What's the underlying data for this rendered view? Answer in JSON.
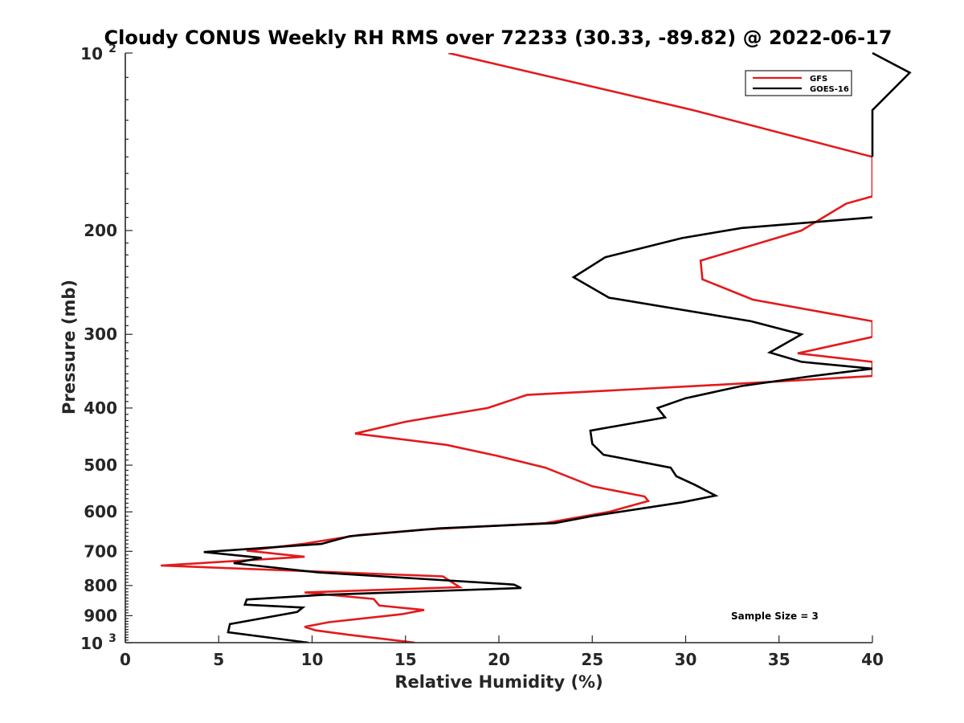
{
  "chart_data": {
    "type": "line",
    "title": "Cloudy CONUS Weekly RH RMS over 72233 (30.33, -89.82) @ 2022-06-17",
    "xlabel": "Relative Humidity (%)",
    "ylabel": "Pressure (mb)",
    "xlim": [
      0,
      40
    ],
    "ylim": [
      100,
      1000
    ],
    "y_scale": "log",
    "y_direction": "reversed",
    "x_ticks": [
      "0",
      "5",
      "10",
      "15",
      "20",
      "25",
      "30",
      "35",
      "40"
    ],
    "y_ticks": [
      {
        "value": 100,
        "base": "10",
        "exp": "2"
      },
      {
        "value": 200,
        "label": "200"
      },
      {
        "value": 300,
        "label": "300"
      },
      {
        "value": 400,
        "label": "400"
      },
      {
        "value": 500,
        "label": "500"
      },
      {
        "value": 600,
        "label": "600"
      },
      {
        "value": 700,
        "label": "700"
      },
      {
        "value": 800,
        "label": "800"
      },
      {
        "value": 900,
        "label": "900"
      },
      {
        "value": 1000,
        "base": "10",
        "exp": "3"
      }
    ],
    "legend": {
      "placement": "top-right",
      "entries": [
        {
          "name": "GFS",
          "color": "#e31a1c"
        },
        {
          "name": "GOES-16",
          "color": "#000000"
        }
      ]
    },
    "annotation": "Sample Size = 3",
    "series": [
      {
        "name": "GFS",
        "color": "#e31a1c",
        "points": [
          [
            17.3,
            100
          ],
          [
            30.4,
            125
          ],
          [
            40.0,
            150
          ],
          [
            40.0,
            175
          ],
          [
            38.6,
            180
          ],
          [
            36.2,
            200
          ],
          [
            30.8,
            225
          ],
          [
            30.9,
            242
          ],
          [
            33.6,
            262
          ],
          [
            40.0,
            285
          ],
          [
            40.0,
            303
          ],
          [
            36.0,
            323
          ],
          [
            40.0,
            334
          ],
          [
            40.0,
            353
          ],
          [
            32.0,
            365
          ],
          [
            21.5,
            380
          ],
          [
            19.4,
            400
          ],
          [
            15.0,
            422
          ],
          [
            12.3,
            442
          ],
          [
            17.2,
            462
          ],
          [
            19.9,
            482
          ],
          [
            22.5,
            505
          ],
          [
            25.0,
            543
          ],
          [
            27.8,
            565
          ],
          [
            28.0,
            575
          ],
          [
            25.9,
            600
          ],
          [
            22.5,
            627
          ],
          [
            16.0,
            643
          ],
          [
            12.5,
            657
          ],
          [
            9.5,
            680
          ],
          [
            6.5,
            698
          ],
          [
            9.6,
            715
          ],
          [
            1.9,
            740
          ],
          [
            17.0,
            772
          ],
          [
            17.9,
            805
          ],
          [
            9.6,
            822
          ],
          [
            13.3,
            843
          ],
          [
            13.6,
            865
          ],
          [
            16.0,
            880
          ],
          [
            14.8,
            895
          ],
          [
            10.9,
            923
          ],
          [
            9.6,
            940
          ],
          [
            10.2,
            953
          ],
          [
            12.0,
            970
          ],
          [
            15.5,
            1000
          ]
        ]
      },
      {
        "name": "GOES-16",
        "color": "#000000",
        "points": [
          [
            40.0,
            190
          ],
          [
            33.0,
            198
          ],
          [
            29.8,
            206
          ],
          [
            25.7,
            222
          ],
          [
            24.0,
            240
          ],
          [
            25.9,
            260
          ],
          [
            33.5,
            285
          ],
          [
            36.2,
            300
          ],
          [
            34.5,
            322
          ],
          [
            36.2,
            334
          ],
          [
            40.0,
            343
          ],
          [
            36.5,
            354
          ],
          [
            33.0,
            367
          ],
          [
            30.0,
            385
          ],
          [
            28.5,
            400
          ],
          [
            28.9,
            415
          ],
          [
            24.9,
            437
          ],
          [
            25.0,
            460
          ],
          [
            25.6,
            480
          ],
          [
            29.2,
            505
          ],
          [
            29.5,
            522
          ],
          [
            30.5,
            540
          ],
          [
            31.6,
            563
          ],
          [
            29.8,
            578
          ],
          [
            25.0,
            610
          ],
          [
            23.0,
            627
          ],
          [
            16.8,
            640
          ],
          [
            12.0,
            660
          ],
          [
            10.5,
            680
          ],
          [
            4.2,
            702
          ],
          [
            7.3,
            718
          ],
          [
            5.8,
            733
          ],
          [
            10.3,
            760
          ],
          [
            20.8,
            797
          ],
          [
            21.2,
            808
          ],
          [
            10.5,
            830
          ],
          [
            6.5,
            845
          ],
          [
            6.4,
            862
          ],
          [
            9.5,
            872
          ],
          [
            9.2,
            887
          ],
          [
            5.6,
            930
          ],
          [
            5.5,
            960
          ],
          [
            9.8,
            1000
          ]
        ]
      }
    ],
    "offscale_segments": [
      {
        "series": "GOES-16",
        "points": [
          [
            40.0,
            100
          ],
          [
            42.0,
            108
          ],
          [
            40.0,
            125
          ],
          [
            40.0,
            150
          ]
        ]
      }
    ]
  }
}
